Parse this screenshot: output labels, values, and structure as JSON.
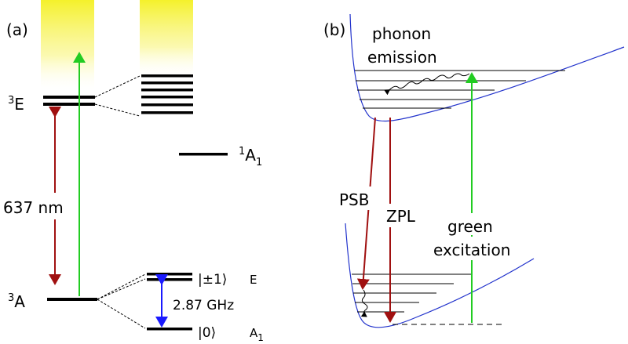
{
  "panel_a": {
    "panel_label": "(a)",
    "excited_state": {
      "sup": "3",
      "name": "E"
    },
    "ground_state": {
      "sup": "3",
      "name": "A"
    },
    "singlet_state": {
      "sup": "1",
      "name": "A",
      "sub": "1"
    },
    "wavelength_label": "637 nm",
    "splitting_label": "2.87 GHz",
    "ket_plus_minus": "|±1⟩",
    "ket_plus_minus_sym": "E",
    "ket_zero": "|0⟩",
    "ket_zero_sym": {
      "name": "A",
      "sub": "1"
    }
  },
  "panel_b": {
    "panel_label": "(b)",
    "phonon_line1": "phonon",
    "phonon_line2": "emission",
    "psb_label": "PSB",
    "zpl_label": "ZPL",
    "green_line1": "green",
    "green_line2": "excitation"
  },
  "colors": {
    "red_arrow": "#a01010",
    "green_arrow": "#22cc22",
    "blue_arrow": "#1a1aff",
    "curve_blue": "#2233cc",
    "glow_yellow": "#f4f020"
  }
}
